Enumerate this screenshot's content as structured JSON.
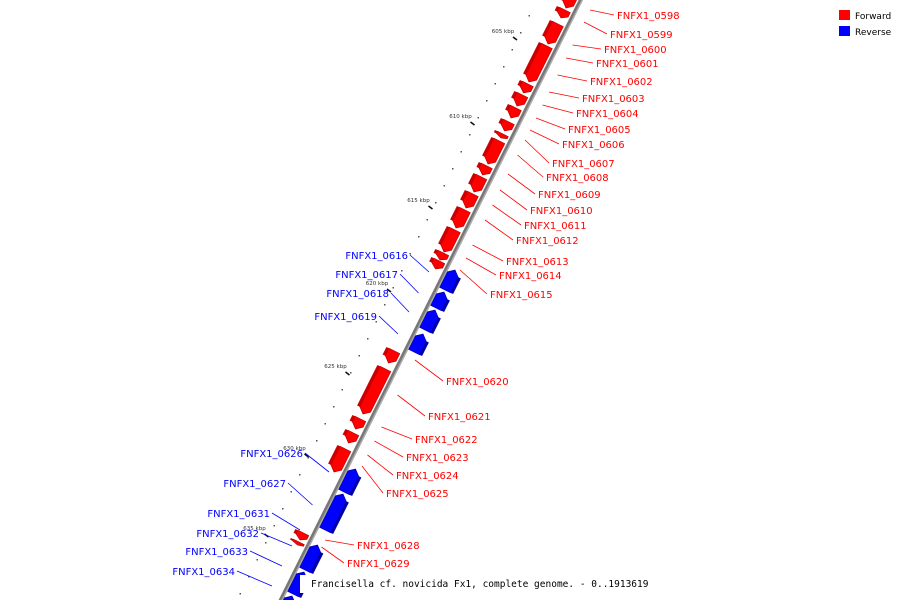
{
  "legend": [
    {
      "label": "Forward",
      "color": "#ff0000"
    },
    {
      "label": "Reverse",
      "color": "#0000ff"
    }
  ],
  "caption": "Francisella cf. novicida Fx1, complete genome. - 0..1913619",
  "tick_labels": [
    "605 kbp",
    "610 kbp",
    "615 kbp",
    "620 kbp",
    "625 kbp",
    "630 kbp",
    "635 kbp"
  ],
  "forward_genes": [
    "FNFX1_0598",
    "FNFX1_0599",
    "FNFX1_0600",
    "FNFX1_0601",
    "FNFX1_0602",
    "FNFX1_0603",
    "FNFX1_0604",
    "FNFX1_0605",
    "FNFX1_0606",
    "FNFX1_0607",
    "FNFX1_0608",
    "FNFX1_0609",
    "FNFX1_0610",
    "FNFX1_0611",
    "FNFX1_0612",
    "FNFX1_0613",
    "FNFX1_0614",
    "FNFX1_0615",
    "FNFX1_0620",
    "FNFX1_0621",
    "FNFX1_0622",
    "FNFX1_0623",
    "FNFX1_0624",
    "FNFX1_0625",
    "FNFX1_0628",
    "FNFX1_0629"
  ],
  "reverse_genes": [
    "FNFX1_0616",
    "FNFX1_0617",
    "FNFX1_0618",
    "FNFX1_0619",
    "FNFX1_0626",
    "FNFX1_0627",
    "FNFX1_0631",
    "FNFX1_0632",
    "FNFX1_0633",
    "FNFX1_0634"
  ],
  "colors": {
    "forward": "#ff0000",
    "reverse": "#0000ff",
    "backbone": "#777777"
  }
}
